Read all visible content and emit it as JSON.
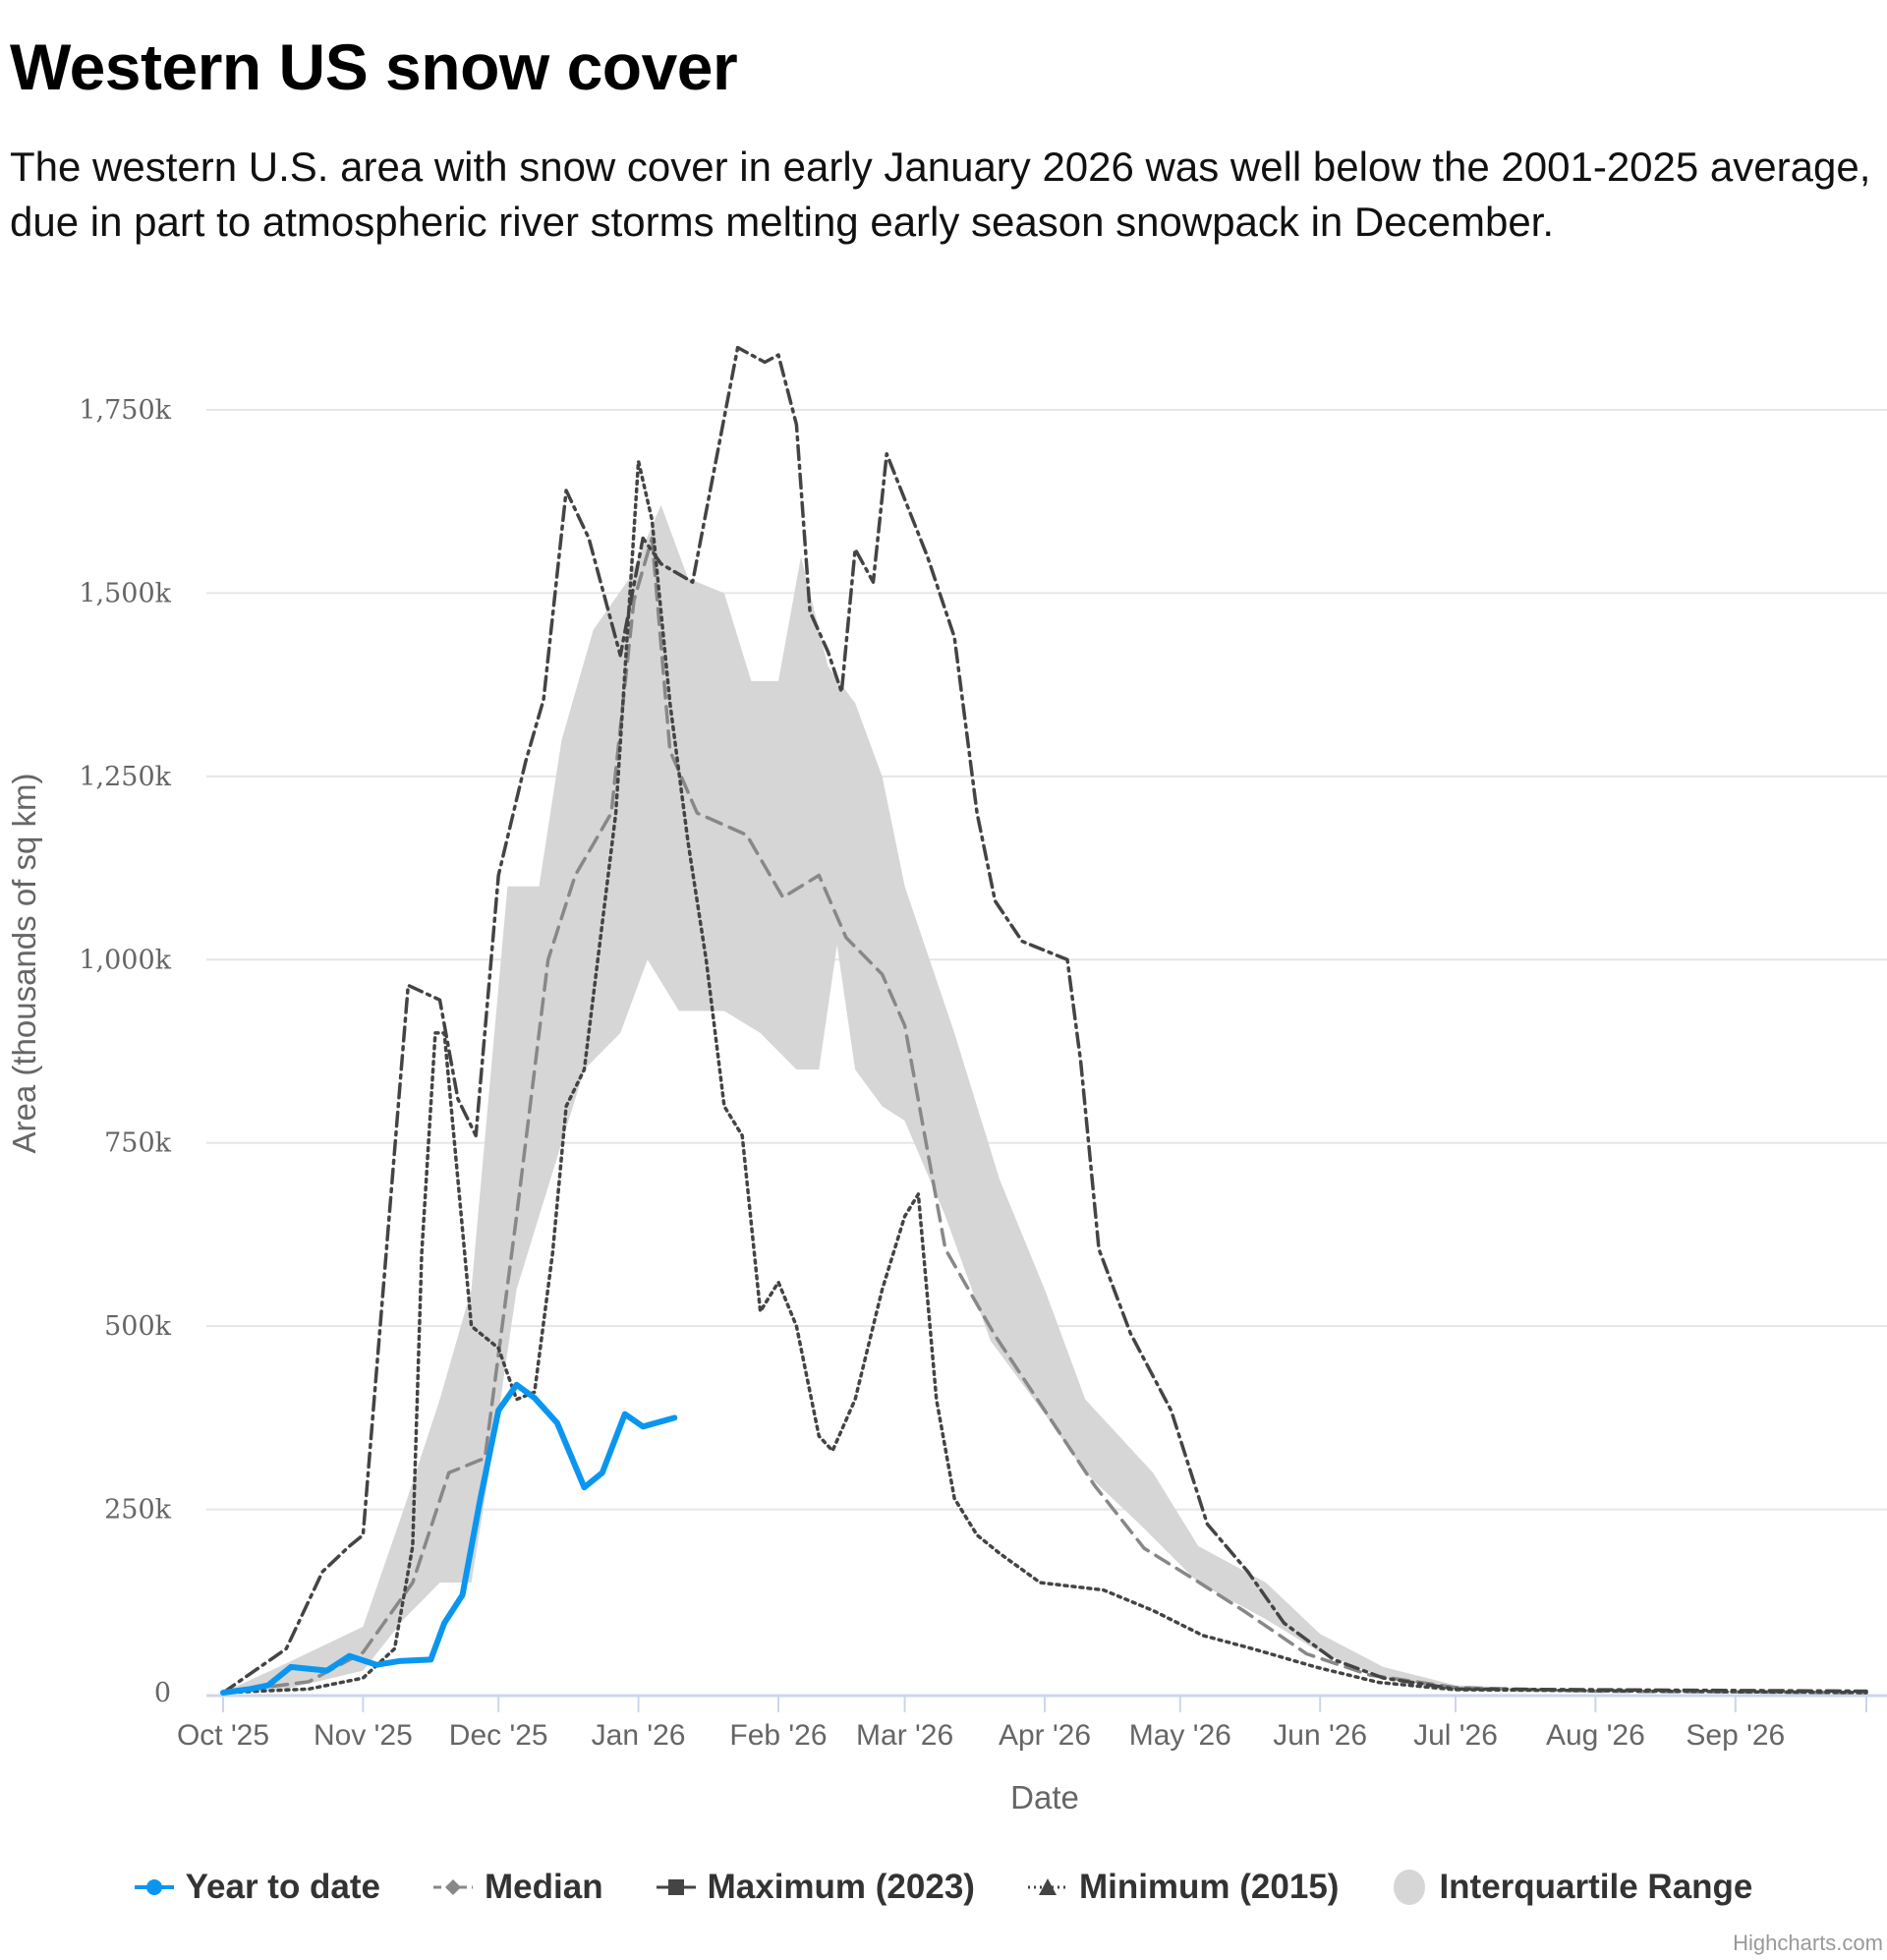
{
  "title": "Western US snow cover",
  "subtitle": "The western U.S. area with snow cover in early January 2026 was well below the 2001-2025 average, due in part to atmospheric river storms melting early season snowpack in December.",
  "credit": "Highcharts.com",
  "chart_data": {
    "type": "line",
    "title": "Western US snow cover",
    "xlabel": "Date",
    "ylabel": "Area (thousands of sq km)",
    "xlim": [
      "2025-10-01",
      "2026-09-30"
    ],
    "ylim": [
      0,
      1750
    ],
    "x_ticks": [
      "Oct '25",
      "Nov '25",
      "Dec '25",
      "Jan '26",
      "Feb '26",
      "Mar '26",
      "Apr '26",
      "May '26",
      "Jun '26",
      "Jul '26",
      "Aug '26",
      "Sep '26"
    ],
    "y_ticks": [
      "0",
      "250k",
      "500k",
      "750k",
      "1,000k",
      "1,250k",
      "1,500k",
      "1,750k"
    ],
    "y_tick_values": [
      0,
      250,
      500,
      750,
      1000,
      1250,
      1500,
      1750
    ],
    "grid": true,
    "legend_position": "bottom",
    "series": [
      {
        "name": "Year to date",
        "color": "#0a96f0",
        "style": "solid",
        "points": [
          [
            "2025-10-01",
            0
          ],
          [
            "2025-10-07",
            5
          ],
          [
            "2025-10-11",
            10
          ],
          [
            "2025-10-16",
            35
          ],
          [
            "2025-10-24",
            30
          ],
          [
            "2025-10-29",
            50
          ],
          [
            "2025-11-04",
            38
          ],
          [
            "2025-11-09",
            43
          ],
          [
            "2025-11-16",
            45
          ],
          [
            "2025-11-19",
            95
          ],
          [
            "2025-11-23",
            133
          ],
          [
            "2025-11-27",
            265
          ],
          [
            "2025-12-01",
            385
          ],
          [
            "2025-12-05",
            420
          ],
          [
            "2025-12-09",
            402
          ],
          [
            "2025-12-14",
            368
          ],
          [
            "2025-12-20",
            280
          ],
          [
            "2025-12-24",
            300
          ],
          [
            "2025-12-29",
            380
          ],
          [
            "2026-01-02",
            363
          ],
          [
            "2026-01-09",
            375
          ]
        ]
      },
      {
        "name": "Median",
        "color": "#888888",
        "style": "dash",
        "points": [
          [
            "2025-10-01",
            0
          ],
          [
            "2025-10-20",
            15
          ],
          [
            "2025-11-01",
            55
          ],
          [
            "2025-11-12",
            150
          ],
          [
            "2025-11-20",
            300
          ],
          [
            "2025-11-28",
            320
          ],
          [
            "2025-12-05",
            650
          ],
          [
            "2025-12-12",
            1000
          ],
          [
            "2025-12-18",
            1115
          ],
          [
            "2025-12-26",
            1200
          ],
          [
            "2025-12-31",
            1490
          ],
          [
            "2026-01-04",
            1575
          ],
          [
            "2026-01-08",
            1285
          ],
          [
            "2026-01-14",
            1200
          ],
          [
            "2026-01-25",
            1170
          ],
          [
            "2026-02-02",
            1085
          ],
          [
            "2026-02-10",
            1115
          ],
          [
            "2026-02-16",
            1030
          ],
          [
            "2026-02-24",
            980
          ],
          [
            "2026-03-01",
            910
          ],
          [
            "2026-03-10",
            605
          ],
          [
            "2026-03-21",
            487
          ],
          [
            "2026-04-01",
            385
          ],
          [
            "2026-04-12",
            283
          ],
          [
            "2026-04-23",
            197
          ],
          [
            "2026-05-04",
            155
          ],
          [
            "2026-05-15",
            112
          ],
          [
            "2026-05-29",
            53
          ],
          [
            "2026-06-12",
            24
          ],
          [
            "2026-07-01",
            7
          ],
          [
            "2026-08-01",
            2
          ],
          [
            "2026-09-30",
            0
          ]
        ]
      },
      {
        "name": "Maximum (2023)",
        "color": "#444444",
        "style": "dashdot",
        "points": [
          [
            "2025-10-01",
            0
          ],
          [
            "2025-10-15",
            60
          ],
          [
            "2025-10-23",
            165
          ],
          [
            "2025-10-29",
            200
          ],
          [
            "2025-11-01",
            215
          ],
          [
            "2025-11-11",
            965
          ],
          [
            "2025-11-18",
            945
          ],
          [
            "2025-11-22",
            810
          ],
          [
            "2025-11-26",
            760
          ],
          [
            "2025-12-01",
            1115
          ],
          [
            "2025-12-07",
            1270
          ],
          [
            "2025-12-11",
            1355
          ],
          [
            "2025-12-16",
            1640
          ],
          [
            "2025-12-21",
            1575
          ],
          [
            "2025-12-28",
            1415
          ],
          [
            "2026-01-02",
            1575
          ],
          [
            "2026-01-06",
            1540
          ],
          [
            "2026-01-13",
            1515
          ],
          [
            "2026-01-23",
            1835
          ],
          [
            "2026-01-29",
            1815
          ],
          [
            "2026-02-01",
            1825
          ],
          [
            "2026-02-05",
            1730
          ],
          [
            "2026-02-08",
            1475
          ],
          [
            "2026-02-12",
            1420
          ],
          [
            "2026-02-15",
            1365
          ],
          [
            "2026-02-18",
            1560
          ],
          [
            "2026-02-22",
            1515
          ],
          [
            "2026-02-25",
            1690
          ],
          [
            "2026-03-06",
            1550
          ],
          [
            "2026-03-12",
            1440
          ],
          [
            "2026-03-17",
            1200
          ],
          [
            "2026-03-21",
            1080
          ],
          [
            "2026-03-27",
            1025
          ],
          [
            "2026-04-06",
            1000
          ],
          [
            "2026-04-09",
            860
          ],
          [
            "2026-04-13",
            605
          ],
          [
            "2026-04-20",
            490
          ],
          [
            "2026-04-29",
            385
          ],
          [
            "2026-05-07",
            230
          ],
          [
            "2026-05-16",
            165
          ],
          [
            "2026-05-24",
            95
          ],
          [
            "2026-06-04",
            45
          ],
          [
            "2026-06-15",
            20
          ],
          [
            "2026-07-01",
            5
          ],
          [
            "2026-09-30",
            2
          ]
        ]
      },
      {
        "name": "Minimum (2015)",
        "color": "#444444",
        "style": "dot",
        "points": [
          [
            "2025-10-01",
            0
          ],
          [
            "2025-10-20",
            5
          ],
          [
            "2025-11-01",
            20
          ],
          [
            "2025-11-08",
            60
          ],
          [
            "2025-11-12",
            200
          ],
          [
            "2025-11-14",
            600
          ],
          [
            "2025-11-17",
            900
          ],
          [
            "2025-11-19",
            900
          ],
          [
            "2025-11-22",
            700
          ],
          [
            "2025-11-25",
            500
          ],
          [
            "2025-12-01",
            470
          ],
          [
            "2025-12-05",
            400
          ],
          [
            "2025-12-09",
            410
          ],
          [
            "2025-12-13",
            600
          ],
          [
            "2025-12-16",
            800
          ],
          [
            "2025-12-20",
            850
          ],
          [
            "2025-12-27",
            1200
          ],
          [
            "2026-01-01",
            1680
          ],
          [
            "2026-01-04",
            1600
          ],
          [
            "2026-01-08",
            1350
          ],
          [
            "2026-01-12",
            1160
          ],
          [
            "2026-01-16",
            1000
          ],
          [
            "2026-01-20",
            800
          ],
          [
            "2026-01-24",
            760
          ],
          [
            "2026-01-28",
            520
          ],
          [
            "2026-02-01",
            560
          ],
          [
            "2026-02-05",
            500
          ],
          [
            "2026-02-10",
            350
          ],
          [
            "2026-02-13",
            330
          ],
          [
            "2026-02-18",
            400
          ],
          [
            "2026-02-24",
            550
          ],
          [
            "2026-03-01",
            650
          ],
          [
            "2026-03-04",
            680
          ],
          [
            "2026-03-08",
            400
          ],
          [
            "2026-03-12",
            265
          ],
          [
            "2026-03-17",
            215
          ],
          [
            "2026-03-22",
            190
          ],
          [
            "2026-03-31",
            150
          ],
          [
            "2026-04-14",
            140
          ],
          [
            "2026-04-25",
            112
          ],
          [
            "2026-05-06",
            78
          ],
          [
            "2026-05-17",
            60
          ],
          [
            "2026-05-31",
            35
          ],
          [
            "2026-06-14",
            14
          ],
          [
            "2026-07-01",
            4
          ],
          [
            "2026-09-30",
            0
          ]
        ]
      }
    ],
    "range": {
      "name": "Interquartile Range",
      "color": "#d6d6d6",
      "upper": [
        [
          "2025-10-01",
          0
        ],
        [
          "2025-10-15",
          40
        ],
        [
          "2025-11-01",
          90
        ],
        [
          "2025-11-10",
          250
        ],
        [
          "2025-11-18",
          400
        ],
        [
          "2025-11-25",
          550
        ],
        [
          "2025-12-03",
          1100
        ],
        [
          "2025-12-10",
          1100
        ],
        [
          "2025-12-15",
          1300
        ],
        [
          "2025-12-22",
          1450
        ],
        [
          "2025-12-30",
          1520
        ],
        [
          "2026-01-06",
          1620
        ],
        [
          "2026-01-12",
          1520
        ],
        [
          "2026-01-20",
          1500
        ],
        [
          "2026-01-26",
          1380
        ],
        [
          "2026-02-01",
          1380
        ],
        [
          "2026-02-06",
          1550
        ],
        [
          "2026-02-12",
          1400
        ],
        [
          "2026-02-18",
          1350
        ],
        [
          "2026-02-24",
          1250
        ],
        [
          "2026-03-01",
          1100
        ],
        [
          "2026-03-12",
          900
        ],
        [
          "2026-03-22",
          700
        ],
        [
          "2026-04-01",
          550
        ],
        [
          "2026-04-10",
          400
        ],
        [
          "2026-04-25",
          300
        ],
        [
          "2026-05-05",
          200
        ],
        [
          "2026-05-20",
          150
        ],
        [
          "2026-06-01",
          80
        ],
        [
          "2026-06-15",
          35
        ],
        [
          "2026-07-01",
          10
        ],
        [
          "2026-08-01",
          2
        ],
        [
          "2026-09-30",
          0
        ]
      ],
      "lower": [
        [
          "2025-10-01",
          0
        ],
        [
          "2025-10-15",
          5
        ],
        [
          "2025-11-01",
          30
        ],
        [
          "2025-11-10",
          100
        ],
        [
          "2025-11-18",
          150
        ],
        [
          "2025-11-25",
          150
        ],
        [
          "2025-12-01",
          380
        ],
        [
          "2025-12-05",
          550
        ],
        [
          "2025-12-10",
          650
        ],
        [
          "2025-12-15",
          750
        ],
        [
          "2025-12-20",
          850
        ],
        [
          "2025-12-28",
          900
        ],
        [
          "2026-01-03",
          1000
        ],
        [
          "2026-01-10",
          930
        ],
        [
          "2026-01-20",
          930
        ],
        [
          "2026-01-28",
          900
        ],
        [
          "2026-02-05",
          850
        ],
        [
          "2026-02-10",
          850
        ],
        [
          "2026-02-14",
          1020
        ],
        [
          "2026-02-18",
          850
        ],
        [
          "2026-02-24",
          800
        ],
        [
          "2026-03-01",
          780
        ],
        [
          "2026-03-10",
          650
        ],
        [
          "2026-03-20",
          480
        ],
        [
          "2026-04-01",
          380
        ],
        [
          "2026-04-10",
          300
        ],
        [
          "2026-04-22",
          230
        ],
        [
          "2026-05-05",
          150
        ],
        [
          "2026-05-20",
          100
        ],
        [
          "2026-06-01",
          55
        ],
        [
          "2026-06-15",
          20
        ],
        [
          "2026-07-01",
          5
        ],
        [
          "2026-08-01",
          1
        ],
        [
          "2026-09-30",
          0
        ]
      ]
    }
  }
}
